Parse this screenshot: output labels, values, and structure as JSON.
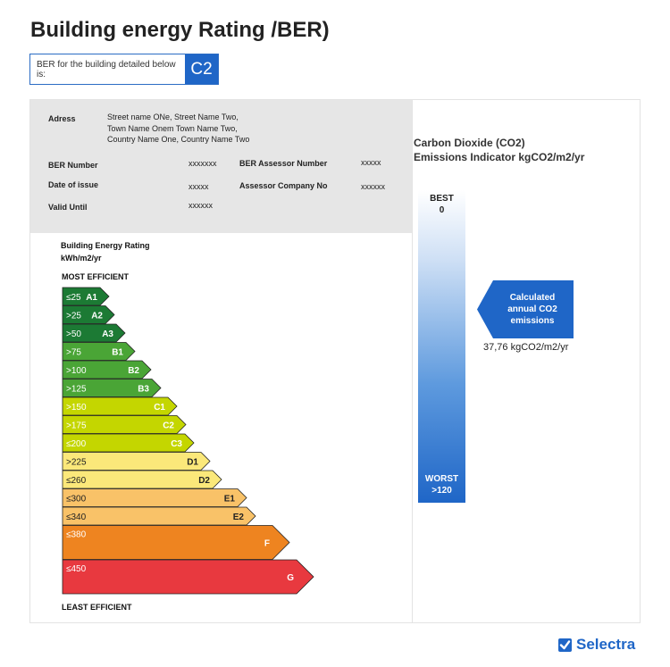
{
  "title": "Building energy Rating /BER)",
  "ber_box": {
    "label": "BER for the building detailed below is:",
    "value": "C2"
  },
  "info": {
    "address_label": "Adress",
    "address_lines": [
      "Street name ONe, Street Name Two,",
      "Town Name Onem Town Name Two,",
      "Country Name One, Country Name Two"
    ],
    "ber_number_label": "BER Number",
    "ber_number_value": "xxxxxxx",
    "assessor_number_label": "BER Assessor Number",
    "assessor_number_value": "xxxxx",
    "date_label": "Date of issue",
    "date_value": "xxxxx",
    "company_label": "Assessor Company No",
    "company_value": "xxxxxx",
    "valid_label": "Valid Until",
    "valid_value": "xxxxxx"
  },
  "energy_chart": {
    "heading_line1": "Building Energy Rating",
    "heading_line2": "kWh/m2/yr",
    "top_label": "MOST EFFICIENT",
    "bottom_label": "LEAST EFFICIENT",
    "bands": [
      {
        "range": "≤25",
        "grade": "A1",
        "color": "#1c7a34"
      },
      {
        "range": ">25",
        "grade": "A2",
        "color": "#1c7a34"
      },
      {
        "range": ">50",
        "grade": "A3",
        "color": "#1c7a34"
      },
      {
        "range": ">75",
        "grade": "B1",
        "color": "#4aa536"
      },
      {
        "range": ">100",
        "grade": "B2",
        "color": "#4aa536"
      },
      {
        "range": ">125",
        "grade": "B3",
        "color": "#4aa536"
      },
      {
        "range": ">150",
        "grade": "C1",
        "color": "#c4d600"
      },
      {
        "range": ">175",
        "grade": "C2",
        "color": "#c4d600"
      },
      {
        "range": "≤200",
        "grade": "C3",
        "color": "#c4d600"
      },
      {
        "range": ">225",
        "grade": "D1",
        "color": "#fbe87a"
      },
      {
        "range": "≤260",
        "grade": "D2",
        "color": "#fbe87a"
      },
      {
        "range": "≤300",
        "grade": "E1",
        "color": "#f9c268"
      },
      {
        "range": "≤340",
        "grade": "E2",
        "color": "#f9c268"
      },
      {
        "range": "≤380",
        "grade": "F",
        "color": "#ee8420"
      },
      {
        "range": "≤450",
        "grade": "G",
        "color": "#e8393f"
      }
    ]
  },
  "co2": {
    "title_line1": "Carbon Dioxide (CO2)",
    "title_line2": "Emissions Indicator kgCO2/m2/yr",
    "best_label": "BEST",
    "best_value": "0",
    "worst_label": "WORST",
    "worst_value": ">120",
    "callout_lines": [
      "Calculated",
      "annual CO2",
      "emissions"
    ],
    "value": "37,76 kgCO2/m2/yr"
  },
  "logo": {
    "text": "Selectra",
    "icon": "checkbox-icon"
  },
  "colors": {
    "accent": "#1f66c7",
    "info_bg": "#e6e6e6"
  }
}
